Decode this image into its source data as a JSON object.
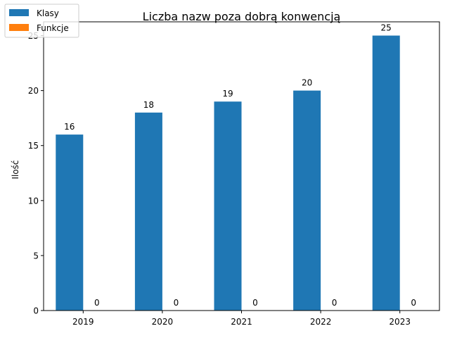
{
  "chart_data": {
    "type": "bar",
    "title": "Liczba nazw poza dobrą konwencją",
    "xlabel": "",
    "ylabel": "Ilość",
    "categories": [
      "2019",
      "2020",
      "2021",
      "2022",
      "2023"
    ],
    "series": [
      {
        "name": "Klasy",
        "values": [
          16,
          18,
          19,
          20,
          25
        ],
        "color": "#1f77b4"
      },
      {
        "name": "Funkcje",
        "values": [
          0,
          0,
          0,
          0,
          0
        ],
        "color": "#ff7f0e"
      }
    ],
    "ylim": [
      0,
      26.25
    ],
    "yticks": [
      0,
      5,
      10,
      15,
      20,
      25
    ],
    "grid": false,
    "legend_position": "top-left"
  }
}
